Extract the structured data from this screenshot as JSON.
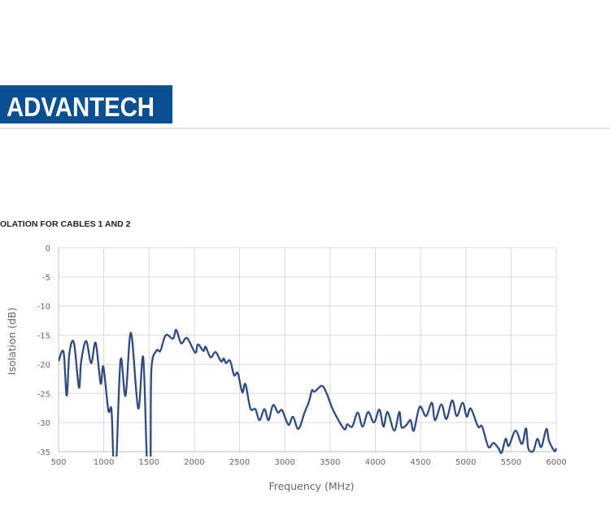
{
  "header": {
    "logo_text": "ADVANTECH",
    "brand_color": "#0b4f93"
  },
  "chart_data": {
    "type": "line",
    "title": "OLATION FOR CABLES 1 AND 2",
    "xlabel": "Frequency (MHz)",
    "ylabel": "Isolation (dB)",
    "xlim": [
      500,
      6000
    ],
    "ylim": [
      -35,
      0
    ],
    "xticks": [
      "500",
      "1000",
      "1500",
      "2000",
      "2500",
      "3000",
      "3500",
      "4000",
      "4500",
      "5000",
      "5500",
      "6000"
    ],
    "yticks": [
      "0",
      "-5",
      "-10",
      "-15",
      "-20",
      "-25",
      "-30",
      "-35"
    ],
    "grid": true,
    "line_color": "#2f4b84",
    "series": [
      {
        "x": [
          500,
          555,
          590,
          620,
          670,
          725,
          750,
          805,
          860,
          910,
          965,
          995,
          1050,
          1085,
          1110,
          1135,
          1185,
          1240,
          1300,
          1380,
          1435,
          1480,
          1515,
          1525,
          1580,
          1625,
          1685,
          1765,
          1800,
          1855,
          1920,
          2010,
          2040,
          2100,
          2125,
          2180,
          2235,
          2295,
          2325,
          2350,
          2395,
          2440,
          2480,
          2530,
          2565,
          2620,
          2675,
          2720,
          2775,
          2820,
          2870,
          2925,
          2970,
          3040,
          3090,
          3150,
          3220,
          3265,
          3300,
          3330,
          3410,
          3465,
          3535,
          3655,
          3690,
          3745,
          3805,
          3860,
          3920,
          3985,
          4045,
          4090,
          4135,
          4210,
          4265,
          4290,
          4345,
          4390,
          4425,
          4490,
          4560,
          4625,
          4660,
          4730,
          4785,
          4850,
          4900,
          4965,
          5010,
          5055,
          5135,
          5180,
          5250,
          5305,
          5360,
          5395,
          5440,
          5475,
          5550,
          5620,
          5665,
          5690,
          5745,
          5790,
          5835,
          5890,
          5920,
          5980,
          6000
        ],
        "y": [
          -19.5,
          -17.9,
          -25.4,
          -18.1,
          -16.3,
          -24,
          -19.5,
          -16,
          -19.8,
          -16.3,
          -23.3,
          -20.4,
          -27.9,
          -27.9,
          -38,
          -38,
          -19.3,
          -25.4,
          -14.6,
          -27.6,
          -18.8,
          -38,
          -38,
          -21.2,
          -17.7,
          -17.7,
          -15,
          -15.6,
          -14.1,
          -16.4,
          -15.5,
          -18,
          -16.6,
          -17.7,
          -17,
          -18.8,
          -17.9,
          -19.5,
          -19,
          -19.8,
          -19.4,
          -21.9,
          -21.5,
          -24.8,
          -23.4,
          -27.6,
          -27.7,
          -29.6,
          -27.7,
          -29.6,
          -27,
          -28.3,
          -27.9,
          -30.4,
          -29,
          -31.1,
          -28.2,
          -26.5,
          -24.5,
          -24.7,
          -23.7,
          -25.1,
          -27.9,
          -31.1,
          -30.3,
          -30.7,
          -28.3,
          -30.7,
          -28.2,
          -30,
          -27.8,
          -30.7,
          -28.2,
          -31.4,
          -28.2,
          -30.8,
          -30.4,
          -29.6,
          -31.4,
          -27.3,
          -28.9,
          -26.6,
          -29.6,
          -26.9,
          -29.4,
          -26.2,
          -28.9,
          -26.6,
          -29,
          -27.6,
          -30.7,
          -30.7,
          -34.2,
          -33.5,
          -34.4,
          -35.2,
          -32.8,
          -34,
          -31.4,
          -33.7,
          -31,
          -34.4,
          -34.9,
          -32.8,
          -34.2,
          -31.1,
          -33.2,
          -34.9,
          -34.4
        ]
      }
    ]
  }
}
